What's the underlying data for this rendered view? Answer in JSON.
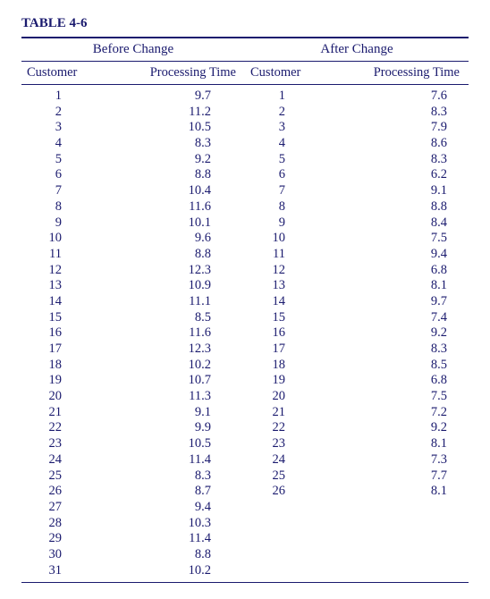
{
  "title": "TABLE 4-6",
  "colors": {
    "text": "#1a1a6e",
    "rule": "#1a1a6e",
    "background": "#ffffff"
  },
  "typography": {
    "family": "Times New Roman",
    "body_size_pt": 11,
    "title_weight": "bold"
  },
  "layout": {
    "columns_per_half": 2,
    "halves": 2
  },
  "groups": {
    "before": {
      "label": "Before Change",
      "columns": {
        "customer": "Customer",
        "time": "Processing Time"
      },
      "rows": [
        {
          "customer": 1,
          "time": "9.7"
        },
        {
          "customer": 2,
          "time": "11.2"
        },
        {
          "customer": 3,
          "time": "10.5"
        },
        {
          "customer": 4,
          "time": "8.3"
        },
        {
          "customer": 5,
          "time": "9.2"
        },
        {
          "customer": 6,
          "time": "8.8"
        },
        {
          "customer": 7,
          "time": "10.4"
        },
        {
          "customer": 8,
          "time": "11.6"
        },
        {
          "customer": 9,
          "time": "10.1"
        },
        {
          "customer": 10,
          "time": "9.6"
        },
        {
          "customer": 11,
          "time": "8.8"
        },
        {
          "customer": 12,
          "time": "12.3"
        },
        {
          "customer": 13,
          "time": "10.9"
        },
        {
          "customer": 14,
          "time": "11.1"
        },
        {
          "customer": 15,
          "time": "8.5"
        },
        {
          "customer": 16,
          "time": "11.6"
        },
        {
          "customer": 17,
          "time": "12.3"
        },
        {
          "customer": 18,
          "time": "10.2"
        },
        {
          "customer": 19,
          "time": "10.7"
        },
        {
          "customer": 20,
          "time": "11.3"
        },
        {
          "customer": 21,
          "time": "9.1"
        },
        {
          "customer": 22,
          "time": "9.9"
        },
        {
          "customer": 23,
          "time": "10.5"
        },
        {
          "customer": 24,
          "time": "11.4"
        },
        {
          "customer": 25,
          "time": "8.3"
        },
        {
          "customer": 26,
          "time": "8.7"
        },
        {
          "customer": 27,
          "time": "9.4"
        },
        {
          "customer": 28,
          "time": "10.3"
        },
        {
          "customer": 29,
          "time": "11.4"
        },
        {
          "customer": 30,
          "time": "8.8"
        },
        {
          "customer": 31,
          "time": "10.2"
        }
      ]
    },
    "after": {
      "label": "After Change",
      "columns": {
        "customer": "Customer",
        "time": "Processing Time"
      },
      "rows": [
        {
          "customer": 1,
          "time": "7.6"
        },
        {
          "customer": 2,
          "time": "8.3"
        },
        {
          "customer": 3,
          "time": "7.9"
        },
        {
          "customer": 4,
          "time": "8.6"
        },
        {
          "customer": 5,
          "time": "8.3"
        },
        {
          "customer": 6,
          "time": "6.2"
        },
        {
          "customer": 7,
          "time": "9.1"
        },
        {
          "customer": 8,
          "time": "8.8"
        },
        {
          "customer": 9,
          "time": "8.4"
        },
        {
          "customer": 10,
          "time": "7.5"
        },
        {
          "customer": 11,
          "time": "9.4"
        },
        {
          "customer": 12,
          "time": "6.8"
        },
        {
          "customer": 13,
          "time": "8.1"
        },
        {
          "customer": 14,
          "time": "9.7"
        },
        {
          "customer": 15,
          "time": "7.4"
        },
        {
          "customer": 16,
          "time": "9.2"
        },
        {
          "customer": 17,
          "time": "8.3"
        },
        {
          "customer": 18,
          "time": "8.5"
        },
        {
          "customer": 19,
          "time": "6.8"
        },
        {
          "customer": 20,
          "time": "7.5"
        },
        {
          "customer": 21,
          "time": "7.2"
        },
        {
          "customer": 22,
          "time": "9.2"
        },
        {
          "customer": 23,
          "time": "8.1"
        },
        {
          "customer": 24,
          "time": "7.3"
        },
        {
          "customer": 25,
          "time": "7.7"
        },
        {
          "customer": 26,
          "time": "8.1"
        }
      ]
    }
  }
}
